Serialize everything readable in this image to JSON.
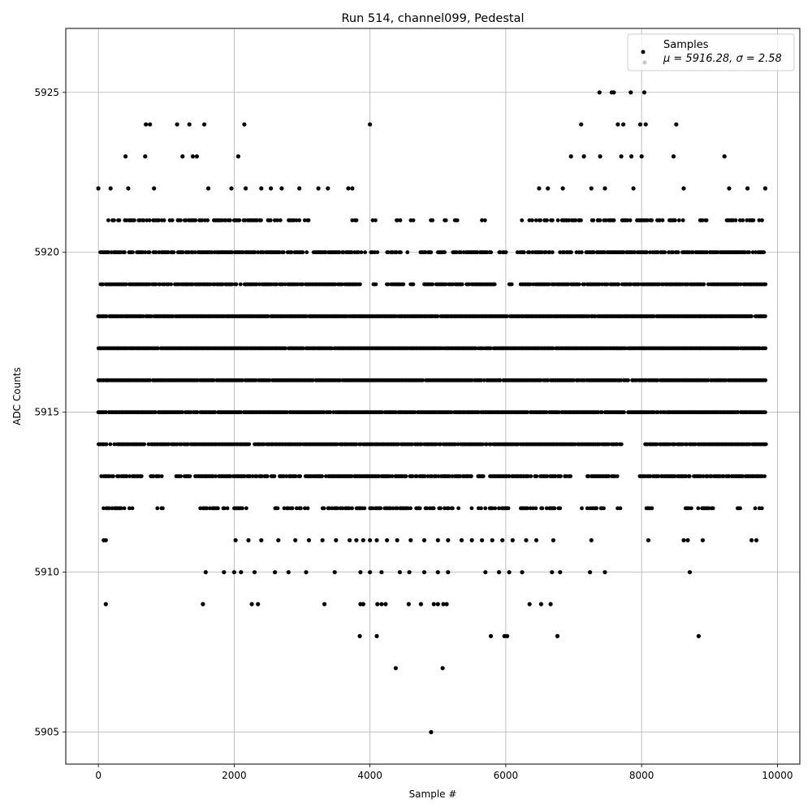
{
  "chart_data": {
    "type": "scatter",
    "title": "Run 514, channel099, Pedestal",
    "xlabel": "Sample #",
    "ylabel": "ADC Counts",
    "xlim": [
      -480,
      10330
    ],
    "ylim": [
      5904,
      5927
    ],
    "xticks": [
      0,
      2000,
      4000,
      6000,
      8000,
      10000
    ],
    "yticks": [
      5905,
      5910,
      5915,
      5920,
      5925
    ],
    "grid": true,
    "legend_position": "top-right",
    "legend": [
      {
        "label": "Samples",
        "color": "#000000"
      },
      {
        "label": "μ = 5916.28, σ = 2.58",
        "color": "#c8c8c8"
      }
    ],
    "series": [
      {
        "name": "Samples",
        "color": "#000000",
        "points": [
          [
            0,
            5922
          ],
          [
            180,
            5922
          ],
          [
            400,
            5923
          ],
          [
            440,
            5922
          ],
          [
            690,
            5923
          ],
          [
            700,
            5924
          ],
          [
            760,
            5924
          ],
          [
            820,
            5922
          ],
          [
            1160,
            5924
          ],
          [
            1240,
            5923
          ],
          [
            1340,
            5924
          ],
          [
            1390,
            5923
          ],
          [
            1450,
            5923
          ],
          [
            1560,
            5924
          ],
          [
            1620,
            5922
          ],
          [
            1960,
            5922
          ],
          [
            2060,
            5923
          ],
          [
            2150,
            5924
          ],
          [
            2170,
            5922
          ],
          [
            2400,
            5922
          ],
          [
            2540,
            5922
          ],
          [
            2700,
            5922
          ],
          [
            2960,
            5922
          ],
          [
            3240,
            5922
          ],
          [
            3380,
            5922
          ],
          [
            3680,
            5922
          ],
          [
            3740,
            5922
          ],
          [
            4000,
            5924
          ],
          [
            6490,
            5922
          ],
          [
            6620,
            5922
          ],
          [
            6840,
            5922
          ],
          [
            6960,
            5923
          ],
          [
            7110,
            5924
          ],
          [
            7150,
            5923
          ],
          [
            7260,
            5922
          ],
          [
            7380,
            5925
          ],
          [
            7390,
            5923
          ],
          [
            7460,
            5922
          ],
          [
            7560,
            5925
          ],
          [
            7590,
            5925
          ],
          [
            7650,
            5924
          ],
          [
            7700,
            5923
          ],
          [
            7730,
            5924
          ],
          [
            7840,
            5925
          ],
          [
            7850,
            5923
          ],
          [
            7880,
            5922
          ],
          [
            7980,
            5924
          ],
          [
            8000,
            5923
          ],
          [
            8040,
            5925
          ],
          [
            8060,
            5924
          ],
          [
            8470,
            5923
          ],
          [
            8510,
            5924
          ],
          [
            8620,
            5922
          ],
          [
            9220,
            5923
          ],
          [
            9290,
            5922
          ],
          [
            9560,
            5922
          ],
          [
            9820,
            5922
          ],
          [
            2020,
            5911
          ],
          [
            2210,
            5911
          ],
          [
            2400,
            5911
          ],
          [
            2650,
            5911
          ],
          [
            2900,
            5911
          ],
          [
            3100,
            5911
          ],
          [
            3300,
            5911
          ],
          [
            3500,
            5911
          ],
          [
            3700,
            5911
          ],
          [
            3800,
            5911
          ],
          [
            3900,
            5911
          ],
          [
            4000,
            5911
          ],
          [
            4100,
            5911
          ],
          [
            4250,
            5911
          ],
          [
            4400,
            5911
          ],
          [
            4600,
            5911
          ],
          [
            4800,
            5911
          ],
          [
            5000,
            5911
          ],
          [
            5150,
            5911
          ],
          [
            5350,
            5911
          ],
          [
            5500,
            5911
          ],
          [
            5650,
            5911
          ],
          [
            5800,
            5911
          ],
          [
            5950,
            5911
          ],
          [
            6100,
            5911
          ],
          [
            6300,
            5911
          ],
          [
            6450,
            5911
          ],
          [
            6700,
            5911
          ],
          [
            7260,
            5911
          ],
          [
            8100,
            5911
          ],
          [
            8620,
            5911
          ],
          [
            8680,
            5911
          ],
          [
            8900,
            5911
          ],
          [
            9620,
            5911
          ],
          [
            9690,
            5911
          ],
          [
            80,
            5911
          ],
          [
            110,
            5911
          ],
          [
            1580,
            5910
          ],
          [
            1850,
            5910
          ],
          [
            2000,
            5910
          ],
          [
            2100,
            5910
          ],
          [
            2300,
            5910
          ],
          [
            2600,
            5910
          ],
          [
            2800,
            5910
          ],
          [
            3060,
            5910
          ],
          [
            3480,
            5910
          ],
          [
            3860,
            5910
          ],
          [
            4000,
            5910
          ],
          [
            4170,
            5910
          ],
          [
            4440,
            5910
          ],
          [
            4580,
            5910
          ],
          [
            4800,
            5910
          ],
          [
            5000,
            5910
          ],
          [
            5150,
            5910
          ],
          [
            5700,
            5910
          ],
          [
            5900,
            5910
          ],
          [
            6050,
            5910
          ],
          [
            6240,
            5910
          ],
          [
            6680,
            5910
          ],
          [
            6800,
            5910
          ],
          [
            7240,
            5910
          ],
          [
            7460,
            5910
          ],
          [
            8710,
            5910
          ],
          [
            110,
            5909
          ],
          [
            1540,
            5909
          ],
          [
            2260,
            5909
          ],
          [
            2350,
            5909
          ],
          [
            3330,
            5909
          ],
          [
            3860,
            5909
          ],
          [
            3900,
            5909
          ],
          [
            4110,
            5909
          ],
          [
            4170,
            5909
          ],
          [
            4230,
            5909
          ],
          [
            4570,
            5909
          ],
          [
            4750,
            5909
          ],
          [
            4940,
            5909
          ],
          [
            5000,
            5909
          ],
          [
            5080,
            5909
          ],
          [
            5130,
            5909
          ],
          [
            6350,
            5909
          ],
          [
            6520,
            5909
          ],
          [
            6660,
            5909
          ],
          [
            3850,
            5908
          ],
          [
            4100,
            5908
          ],
          [
            5780,
            5908
          ],
          [
            5980,
            5908
          ],
          [
            6020,
            5908
          ],
          [
            6760,
            5908
          ],
          [
            8840,
            5908
          ],
          [
            4380,
            5907
          ],
          [
            5070,
            5907
          ],
          [
            4900,
            5905
          ]
        ]
      }
    ],
    "bands": [
      {
        "y": 5921,
        "x_ranges": [
          [
            150,
            1620
          ],
          [
            1700,
            2700
          ],
          [
            2800,
            3100
          ],
          [
            3700,
            3800
          ],
          [
            4000,
            4150
          ],
          [
            4350,
            4450
          ],
          [
            4600,
            4650
          ],
          [
            4900,
            4950
          ],
          [
            5100,
            5150
          ],
          [
            5250,
            5300
          ],
          [
            5650,
            5700
          ],
          [
            6200,
            6250
          ],
          [
            6350,
            7400
          ],
          [
            7450,
            8650
          ],
          [
            8800,
            9000
          ],
          [
            9250,
            9820
          ]
        ],
        "density": 0.55
      },
      {
        "y": 5920,
        "x_ranges": [
          [
            30,
            4120
          ],
          [
            4250,
            4550
          ],
          [
            4700,
            4900
          ],
          [
            5000,
            5100
          ],
          [
            5200,
            5800
          ],
          [
            5900,
            6000
          ],
          [
            6150,
            6700
          ],
          [
            6800,
            9820
          ]
        ],
        "density": 0.8
      },
      {
        "y": 5919,
        "x_ranges": [
          [
            30,
            3850
          ],
          [
            4050,
            4100
          ],
          [
            4250,
            4500
          ],
          [
            4600,
            4650
          ],
          [
            4800,
            5850
          ],
          [
            6050,
            6100
          ],
          [
            6200,
            9830
          ]
        ],
        "density": 0.85
      },
      {
        "y": 5918,
        "x_ranges": [
          [
            0,
            9830
          ]
        ],
        "density": 0.97
      },
      {
        "y": 5917,
        "x_ranges": [
          [
            0,
            9830
          ]
        ],
        "density": 0.97
      },
      {
        "y": 5916,
        "x_ranges": [
          [
            0,
            9830
          ]
        ],
        "density": 0.97
      },
      {
        "y": 5915,
        "x_ranges": [
          [
            0,
            7750
          ],
          [
            7800,
            9830
          ]
        ],
        "density": 0.95
      },
      {
        "y": 5914,
        "x_ranges": [
          [
            0,
            2250
          ],
          [
            2300,
            7700
          ],
          [
            8050,
            9830
          ]
        ],
        "density": 0.9
      },
      {
        "y": 5913,
        "x_ranges": [
          [
            0,
            650
          ],
          [
            750,
            950
          ],
          [
            1150,
            2500
          ],
          [
            2550,
            6950
          ],
          [
            7200,
            7650
          ],
          [
            7950,
            9830
          ]
        ],
        "density": 0.82
      },
      {
        "y": 5912,
        "x_ranges": [
          [
            60,
            550
          ],
          [
            850,
            1000
          ],
          [
            1500,
            1900
          ],
          [
            2000,
            2200
          ],
          [
            2600,
            3100
          ],
          [
            3300,
            5300
          ],
          [
            5500,
            6050
          ],
          [
            6200,
            6800
          ],
          [
            7100,
            7450
          ],
          [
            7650,
            7700
          ],
          [
            8050,
            8200
          ],
          [
            8650,
            9050
          ],
          [
            9350,
            9450
          ],
          [
            9650,
            9800
          ]
        ],
        "density": 0.6
      }
    ]
  }
}
